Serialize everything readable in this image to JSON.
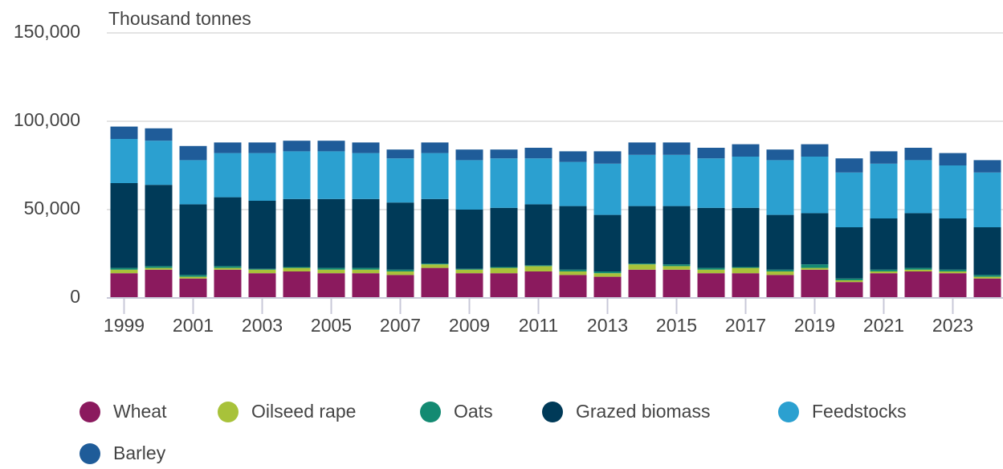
{
  "chart_data": {
    "type": "stacked_bar",
    "y_axis_label": "Thousand tonnes",
    "categories": [
      "1999",
      null,
      "2001",
      null,
      "2003",
      null,
      "2005",
      null,
      "2007",
      null,
      "2009",
      null,
      "2011",
      null,
      "2013",
      null,
      "2015",
      null,
      "2017",
      null,
      "2019",
      null,
      "2021",
      null,
      "2023",
      null
    ],
    "series": [
      {
        "name": "Wheat",
        "color": "#8b1a5e",
        "values": [
          14000,
          16000,
          11000,
          16000,
          14000,
          15000,
          14000,
          14000,
          13000,
          17000,
          14000,
          14000,
          15000,
          13000,
          12000,
          16000,
          16000,
          14000,
          14000,
          13000,
          16000,
          9000,
          14000,
          15000,
          14000,
          11000
        ]
      },
      {
        "name": "Oilseed rape",
        "color": "#a8c23a",
        "values": [
          2000,
          1000,
          1000,
          1000,
          2000,
          2000,
          2000,
          2000,
          2000,
          2000,
          2000,
          3000,
          3000,
          2000,
          2000,
          3000,
          2000,
          2000,
          3000,
          2000,
          1000,
          1000,
          1000,
          1000,
          1000,
          1000
        ]
      },
      {
        "name": "Oats",
        "color": "#138a72",
        "values": [
          1000,
          1000,
          1000,
          1000,
          500,
          500,
          1000,
          1000,
          1000,
          500,
          500,
          500,
          500,
          1000,
          1000,
          500,
          1000,
          1000,
          500,
          1000,
          2000,
          1000,
          1000,
          1000,
          1000,
          1000
        ]
      },
      {
        "name": "Grazed biomass",
        "color": "#003a58",
        "values": [
          48000,
          46000,
          40000,
          39000,
          38500,
          38500,
          39000,
          39000,
          38000,
          36500,
          33500,
          33500,
          34500,
          36000,
          32000,
          32500,
          33000,
          34000,
          33500,
          31000,
          29000,
          29000,
          29000,
          31000,
          29000,
          27000
        ]
      },
      {
        "name": "Feedstocks",
        "color": "#2ba0d0",
        "values": [
          25000,
          25000,
          25000,
          25000,
          27000,
          27000,
          27000,
          26000,
          25000,
          26000,
          28000,
          28000,
          26000,
          25000,
          29000,
          29000,
          29000,
          28000,
          29000,
          31000,
          32000,
          31000,
          31000,
          30000,
          30000,
          31000
        ]
      },
      {
        "name": "Barley",
        "color": "#1f5c99",
        "values": [
          7000,
          7000,
          8000,
          6000,
          6000,
          6000,
          6000,
          6000,
          5000,
          6000,
          6000,
          5000,
          6000,
          6000,
          7000,
          7000,
          7000,
          6000,
          7000,
          6000,
          7000,
          8000,
          7000,
          7000,
          7000,
          7000
        ]
      }
    ],
    "ylim": [
      0,
      150000
    ],
    "yticks": [
      0,
      {
        "value": 50000,
        "label": "50,000"
      },
      {
        "value": 100000,
        "label": "100,000"
      },
      {
        "value": 150000,
        "label": "150,000"
      }
    ],
    "grid": true
  }
}
